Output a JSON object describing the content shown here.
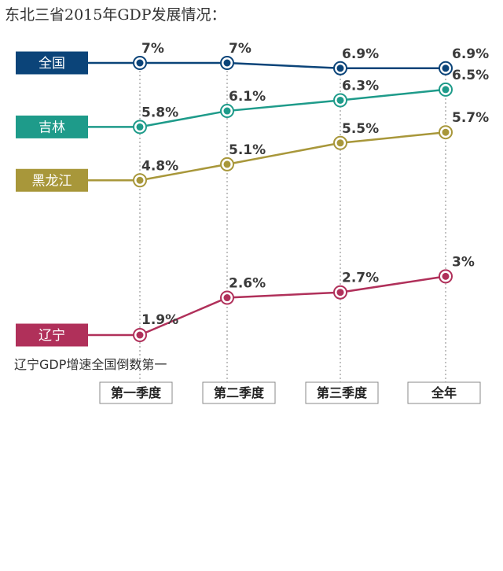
{
  "title": "东北三省2015年GDP发展情况：",
  "note": "辽宁GDP增速全国倒数第一",
  "chart_data": {
    "type": "line",
    "categories": [
      "第一季度",
      "第二季度",
      "第三季度",
      "全年"
    ],
    "unit": "%",
    "series": [
      {
        "name": "全国",
        "color": "#0b4479",
        "values": [
          7,
          7,
          6.9,
          6.9
        ],
        "labels": [
          "7%",
          "7%",
          "6.9%",
          "6.9%"
        ]
      },
      {
        "name": "吉林",
        "color": "#1e9b8a",
        "values": [
          5.8,
          6.1,
          6.3,
          6.5
        ],
        "labels": [
          "5.8%",
          "6.1%",
          "6.3%",
          "6.5%"
        ]
      },
      {
        "name": "黑龙江",
        "color": "#a8973a",
        "values": [
          4.8,
          5.1,
          5.5,
          5.7
        ],
        "labels": [
          "4.8%",
          "5.1%",
          "5.5%",
          "5.7%"
        ]
      },
      {
        "name": "辽宁",
        "color": "#b0305a",
        "values": [
          1.9,
          2.6,
          2.7,
          3
        ],
        "labels": [
          "1.9%",
          "2.6%",
          "2.7%",
          "3%"
        ]
      }
    ],
    "legend": "left-aligned labels at each line start",
    "grid": "dotted vertical guide per category"
  }
}
